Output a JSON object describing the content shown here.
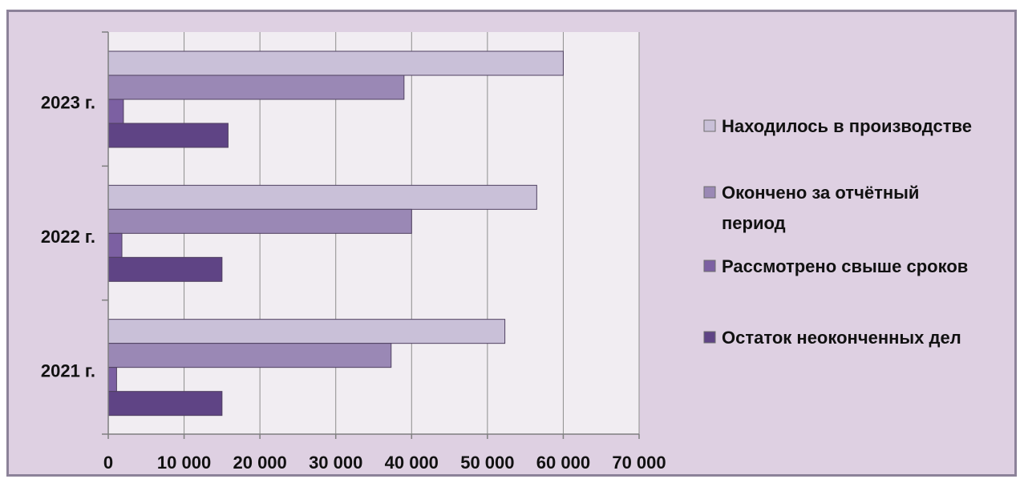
{
  "chart_data": {
    "type": "bar",
    "orientation": "horizontal",
    "categories": [
      "2023 г.",
      "2022 г.",
      "2021 г."
    ],
    "series": [
      {
        "name": "Находилось в производстве",
        "values": [
          60000,
          56500,
          52300
        ],
        "color": "#c9c0d8"
      },
      {
        "name": "Окончено за отчётный период",
        "values": [
          39000,
          40000,
          37300
        ],
        "color": "#9a88b5"
      },
      {
        "name": "Рассмотрено свыше сроков",
        "values": [
          2000,
          1800,
          1100
        ],
        "color": "#7c60a2"
      },
      {
        "name": "Остаток неоконченных дел",
        "values": [
          15800,
          15000,
          15000
        ],
        "color": "#5f4485"
      }
    ],
    "xlim": [
      0,
      70000
    ],
    "xticks": [
      0,
      10000,
      20000,
      30000,
      40000,
      50000,
      60000,
      70000
    ],
    "xtick_labels": [
      "0",
      "10 000",
      "20 000",
      "30 000",
      "40 000",
      "50 000",
      "60 000",
      "70 000"
    ],
    "grid": true,
    "legend_position": "right",
    "legend_lines": [
      [
        "Находилось в производстве"
      ],
      [
        "Окончено за отчётный",
        "период"
      ],
      [
        "Рассмотрено свыше сроков"
      ],
      [
        "Остаток неоконченных дел"
      ]
    ],
    "plot_background": "#f1edf2",
    "chart_background": "#ded0e2"
  }
}
